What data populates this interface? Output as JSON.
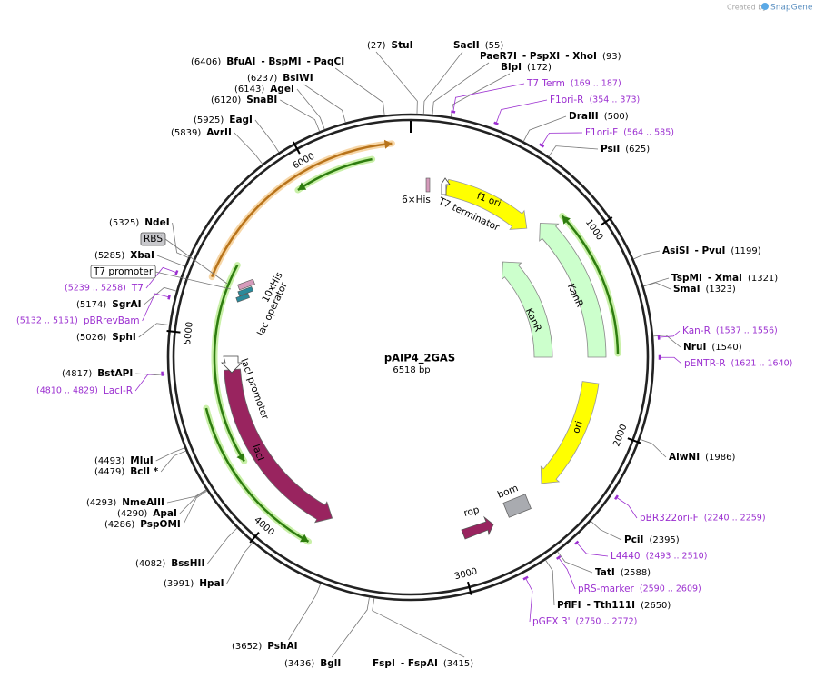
{
  "credit": "Created by",
  "brand": "SnapGene",
  "plasmid": {
    "name": "pAIP4_2GAS",
    "length": "6518 bp"
  },
  "ticks": [
    1000,
    2000,
    3000,
    4000,
    5000,
    6000
  ],
  "sites": [
    {
      "pos": {
        "value": 27,
        "label": "(27)"
      },
      "names": [
        "StuI"
      ]
    },
    {
      "pos": {
        "value": 55,
        "label": "(55)"
      },
      "names": [
        "SacII"
      ]
    },
    {
      "pos": {
        "value": 93,
        "label": "(93)"
      },
      "names": [
        "PaeR7I",
        "- PspXI",
        "- XhoI"
      ]
    },
    {
      "pos": {
        "value": 172,
        "label": "(172)"
      },
      "names": [
        "BlpI"
      ]
    },
    {
      "pos": {
        "value": 500,
        "label": "(500)"
      },
      "names": [
        "DraIII"
      ]
    },
    {
      "pos": {
        "value": 625,
        "label": "(625)"
      },
      "names": [
        "PsiI"
      ]
    },
    {
      "pos": {
        "value": 1199,
        "label": "(1199)"
      },
      "names": [
        "AsiSI",
        "- PvuI"
      ]
    },
    {
      "pos": {
        "value": 1321,
        "label": "(1321)"
      },
      "names": [
        "TspMI",
        "- XmaI"
      ]
    },
    {
      "pos": {
        "value": 1323,
        "label": "(1323)"
      },
      "names": [
        "SmaI"
      ]
    },
    {
      "pos": {
        "value": 1540,
        "label": "(1540)"
      },
      "names": [
        "NruI"
      ]
    },
    {
      "pos": {
        "value": 1986,
        "label": "(1986)"
      },
      "names": [
        "AlwNI"
      ]
    },
    {
      "pos": {
        "value": 2395,
        "label": "(2395)"
      },
      "names": [
        "PciI"
      ]
    },
    {
      "pos": {
        "value": 2588,
        "label": "(2588)"
      },
      "names": [
        "TatI"
      ]
    },
    {
      "pos": {
        "value": 2650,
        "label": "(2650)"
      },
      "names": [
        "PflFI",
        "- Tth111I"
      ]
    },
    {
      "pos": {
        "value": 3415,
        "label": "(3415)"
      },
      "names": [
        "FspI",
        "- FspAI"
      ]
    },
    {
      "pos": {
        "value": 3436,
        "label": "(3436)"
      },
      "names": [
        "BglI"
      ]
    },
    {
      "pos": {
        "value": 3652,
        "label": "(3652)"
      },
      "names": [
        "PshAI"
      ]
    },
    {
      "pos": {
        "value": 3991,
        "label": "(3991)"
      },
      "names": [
        "HpaI"
      ]
    },
    {
      "pos": {
        "value": 4082,
        "label": "(4082)"
      },
      "names": [
        "BssHII"
      ]
    },
    {
      "pos": {
        "value": 4286,
        "label": "(4286)"
      },
      "names": [
        "PspOMI"
      ]
    },
    {
      "pos": {
        "value": 4290,
        "label": "(4290)"
      },
      "names": [
        "ApaI"
      ]
    },
    {
      "pos": {
        "value": 4293,
        "label": "(4293)"
      },
      "names": [
        "NmeAIII"
      ]
    },
    {
      "pos": {
        "value": 4479,
        "label": "(4479)"
      },
      "names": [
        "BclI *"
      ]
    },
    {
      "pos": {
        "value": 4493,
        "label": "(4493)"
      },
      "names": [
        "MluI"
      ]
    },
    {
      "pos": {
        "value": 4817,
        "label": "(4817)"
      },
      "names": [
        "BstAPI"
      ]
    },
    {
      "pos": {
        "value": 5026,
        "label": "(5026)"
      },
      "names": [
        "SphI"
      ]
    },
    {
      "pos": {
        "value": 5174,
        "label": "(5174)"
      },
      "names": [
        "SgrAI"
      ]
    },
    {
      "pos": {
        "value": 5285,
        "label": "(5285)"
      },
      "names": [
        "XbaI"
      ]
    },
    {
      "pos": {
        "value": 5325,
        "label": "(5325)"
      },
      "names": [
        "NdeI"
      ]
    },
    {
      "pos": {
        "value": 5839,
        "label": "(5839)"
      },
      "names": [
        "AvrII"
      ]
    },
    {
      "pos": {
        "value": 5925,
        "label": "(5925)"
      },
      "names": [
        "EagI"
      ]
    },
    {
      "pos": {
        "value": 6120,
        "label": "(6120)"
      },
      "names": [
        "SnaBI"
      ]
    },
    {
      "pos": {
        "value": 6143,
        "label": "(6143)"
      },
      "names": [
        "AgeI"
      ]
    },
    {
      "pos": {
        "value": 6237,
        "label": "(6237)"
      },
      "names": [
        "BsiWI"
      ]
    },
    {
      "pos": {
        "value": 6406,
        "label": "(6406)"
      },
      "names": [
        "BfuAI",
        "- BspMI",
        "- PaqCI"
      ]
    }
  ],
  "primers": [
    {
      "name": "T7 Term",
      "range": {
        "start": 169,
        "end": 187,
        "label": "(169 .. 187)"
      }
    },
    {
      "name": "F1ori-R",
      "range": {
        "start": 354,
        "end": 373,
        "label": "(354 .. 373)"
      }
    },
    {
      "name": "F1ori-F",
      "range": {
        "start": 564,
        "end": 585,
        "label": "(564 .. 585)"
      }
    },
    {
      "name": "Kan-R",
      "range": {
        "start": 1537,
        "end": 1556,
        "label": "(1537 .. 1556)"
      }
    },
    {
      "name": "pENTR-R",
      "range": {
        "start": 1621,
        "end": 1640,
        "label": "(1621 .. 1640)"
      }
    },
    {
      "name": "pBR322ori-F",
      "range": {
        "start": 2240,
        "end": 2259,
        "label": "(2240 .. 2259)"
      }
    },
    {
      "name": "L4440",
      "range": {
        "start": 2493,
        "end": 2510,
        "label": "(2493 .. 2510)"
      }
    },
    {
      "name": "pRS-marker",
      "range": {
        "start": 2590,
        "end": 2609,
        "label": "(2590 .. 2609)"
      }
    },
    {
      "name": "pGEX 3'",
      "range": {
        "start": 2750,
        "end": 2772,
        "label": "(2750 .. 2772)"
      }
    },
    {
      "name": "T7",
      "range": {
        "start": 5239,
        "end": 5258,
        "label": "(5239 .. 5258)"
      }
    },
    {
      "name": "pBRrevBam",
      "range": {
        "start": 5132,
        "end": 5151,
        "label": "(5132 .. 5151)"
      }
    },
    {
      "name": "LacI-R",
      "range": {
        "start": 4810,
        "end": 4829,
        "label": "(4810 .. 4829)"
      }
    }
  ],
  "boxed_features": [
    "RBS",
    "T7 promoter"
  ],
  "features": [
    "f1 ori",
    "KanR",
    "KanR",
    "ori",
    "bom",
    "rop",
    "lacI",
    "lacI promoter",
    "lac operator",
    "10xHis",
    "6×His",
    "T7 terminator"
  ]
}
